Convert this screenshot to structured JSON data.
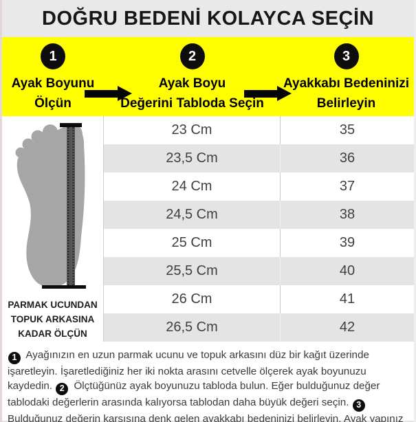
{
  "title": "DOĞRU BEDENİ KOLAYCA SEÇİN",
  "steps": [
    {
      "number": "1",
      "label": "Ayak Boyunu\nÖlçün"
    },
    {
      "number": "2",
      "label": "Ayak Boyu\nDeğerini Tabloda Seçin"
    },
    {
      "number": "3",
      "label": "Ayakkabı Bedeninizi\nBelirleyin"
    }
  ],
  "size_table": {
    "columns": [
      "Ayak Boyu",
      "Ayakkabı Bedeni"
    ],
    "rows": [
      {
        "length": "23 Cm",
        "size": "35"
      },
      {
        "length": "23,5 Cm",
        "size": "36"
      },
      {
        "length": "24 Cm",
        "size": "37"
      },
      {
        "length": "24,5 Cm",
        "size": "38"
      },
      {
        "length": "25 Cm",
        "size": "39"
      },
      {
        "length": "25,5 Cm",
        "size": "40"
      },
      {
        "length": "26 Cm",
        "size": "41"
      },
      {
        "length": "26,5 Cm",
        "size": "42"
      }
    ]
  },
  "foot_figure": {
    "caption": "PARMAK UCUNDAN\nTOPUK ARKASINA\nKADAR ÖLÇÜN"
  },
  "instructions": {
    "segments": [
      {
        "marker": "1",
        "text": "Ayağınızın en uzun parmak ucunu ve topuk arkasını düz bir kağıt üzerinde işaretleyin. İşaretlediğiniz her iki nokta arasını cetvelle ölçerek ayak boyunuzu kaydedin."
      },
      {
        "marker": "2",
        "text": "Ölçtüğünüz ayak boyunuzu tabloda bulun. Eğer bulduğunuz değer tablodaki değerlerin arasında kalıyorsa tablodan daha büyük değeri seçin."
      },
      {
        "marker": "3",
        "text": "Bulduğunuz değerin karşısına denk gelen ayakkabı bedeninizi belirleyin. Ayak yapınız taraklı ve gövdeli ise bir üst bedeni tercih etmenizi öneririz."
      }
    ]
  },
  "colors": {
    "accent_yellow": "#ffff00",
    "title_bar_gray": "#e9e9e9",
    "row_alt_gray": "#e4e4e4",
    "foot_gray": "#a6a6a6",
    "step_circle_black": "#0d0d0d"
  }
}
